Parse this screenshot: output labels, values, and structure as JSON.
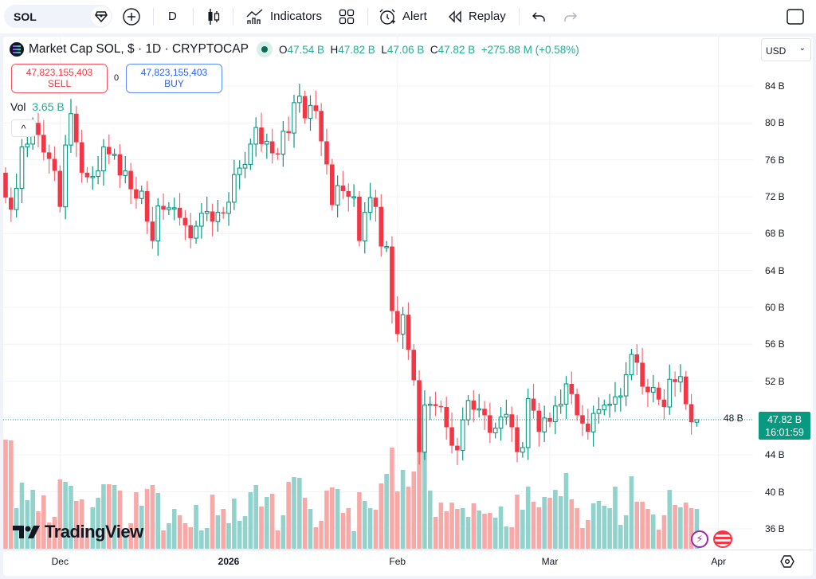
{
  "toolbar": {
    "symbol": "SOL",
    "interval": "D",
    "indicators_label": "Indicators",
    "alert_label": "Alert",
    "replay_label": "Replay"
  },
  "legend": {
    "title": "Market Cap SOL, $ · 1D · CRYPTOCAP",
    "o_label": "O",
    "o_value": "47.54 B",
    "h_label": "H",
    "h_value": "47.82 B",
    "l_label": "L",
    "l_value": "47.06 B",
    "c_label": "C",
    "c_value": "47.82 B",
    "change": "+275.88 M (+0.58%)"
  },
  "trade": {
    "sell_price": "47,823,155,403",
    "sell_label": "SELL",
    "spread": "0",
    "buy_price": "47,823,155,403",
    "buy_label": "BUY"
  },
  "volume": {
    "label": "Vol",
    "value": "3.65 B"
  },
  "collapse_glyph": "^",
  "currency": "USD",
  "last_price": {
    "value": "47.82 B",
    "countdown": "16:01:59"
  },
  "brand": "TradingView",
  "colors": {
    "up": "#089981",
    "down": "#f23645",
    "up_vol": "#92d2cc",
    "down_vol": "#f7a9a7"
  },
  "chart_data": {
    "type": "candlestick",
    "title": "Market Cap SOL, $ · 1D · CRYPTOCAP",
    "unit": "B USD",
    "first_open": 74.6,
    "close": [
      71.9,
      70.6,
      72.9,
      77.4,
      77.7,
      80.0,
      78.7,
      76.8,
      76.1,
      74.8,
      70.9,
      77.6,
      81.0,
      77.9,
      74.6,
      74.1,
      74.2,
      74.8,
      77.4,
      76.6,
      76.6,
      74.3,
      74.8,
      72.8,
      71.8,
      72.6,
      69.3,
      67.2,
      71.0,
      70.6,
      70.8,
      70.8,
      69.7,
      68.9,
      67.5,
      68.8,
      70.2,
      70.4,
      69.3,
      70.3,
      70.2,
      71.4,
      74.4,
      75.1,
      75.5,
      77.7,
      79.5,
      77.7,
      78.0,
      76.7,
      76.6,
      79.1,
      78.9,
      82.2,
      82.9,
      80.5,
      81.9,
      81.3,
      78.0,
      75.5,
      71.1,
      73.2,
      72.6,
      72.0,
      72.0,
      67.2,
      70.3,
      71.9,
      70.9,
      66.6,
      66.6,
      59.6,
      57.1,
      59.2,
      55.4,
      52.1,
      44.3,
      49.4,
      49.5,
      49.3,
      49.2,
      47.0,
      45.0,
      44.5,
      47.8,
      49.9,
      48.9,
      49.0,
      48.3,
      46.4,
      46.9,
      48.1,
      48.4,
      47.0,
      44.3,
      44.8,
      50.1,
      48.8,
      46.5,
      48.0,
      47.6,
      49.3,
      49.5,
      51.7,
      50.6,
      48.3,
      47.4,
      46.5,
      48.5,
      48.9,
      49.4,
      49.5,
      50.3,
      50.4,
      52.7,
      54.9,
      54.0,
      51.4,
      50.8,
      51.3,
      50.0,
      49.2,
      52.2,
      51.9,
      52.5,
      49.5,
      47.54,
      47.82
    ],
    "last_high": 47.82,
    "last_low": 47.06,
    "volume": [
      10.0,
      9.93,
      3.72,
      6.06,
      4.45,
      5.4,
      3.43,
      4.89,
      2.41,
      2.92,
      6.35,
      6.13,
      5.77,
      4.38,
      4.53,
      1.9,
      3.8,
      4.67,
      5.91,
      5.91,
      5.84,
      5.33,
      1.61,
      2.34,
      5.18,
      3.94,
      5.48,
      5.84,
      5.11,
      1.68,
      2.34,
      3.65,
      3.07,
      2.34,
      1.97,
      4.02,
      1.68,
      1.9,
      4.96,
      3.07,
      3.65,
      2.34,
      4.6,
      2.56,
      2.99,
      5.18,
      5.84,
      3.87,
      4.75,
      5.04,
      1.68,
      3.07,
      6.13,
      6.57,
      6.5,
      4.67,
      3.65,
      1.97,
      2.56,
      5.33,
      5.62,
      5.48,
      3.29,
      3.72,
      1.61,
      5.18,
      4.38,
      3.72,
      3.58,
      5.99,
      6.86,
      9.27,
      5.26,
      7.23,
      5.69,
      7.08,
      10.5,
      11.8,
      5.33,
      2.92,
      4.23,
      3.43,
      4.23,
      3.65,
      3.72,
      2.92,
      4.16,
      3.5,
      3.21,
      3.29,
      2.85,
      3.87,
      2.04,
      1.97,
      4.96,
      3.58,
      5.69,
      4.31,
      3.8,
      4.75,
      4.67,
      5.4,
      4.82,
      6.94,
      4.53,
      3.72,
      1.9,
      2.63,
      4.16,
      4.38,
      3.94,
      3.72,
      5.69,
      2.19,
      3.07,
      6.64,
      4.31,
      4.31,
      3.65,
      3.14,
      1.75,
      3.07,
      5.4,
      4.02,
      3.8,
      4.23,
      3.72,
      3.65
    ],
    "ylim": [
      34,
      86
    ],
    "y_ticks": [
      "84 B",
      "80 B",
      "76 B",
      "72 B",
      "68 B",
      "64 B",
      "60 B",
      "56 B",
      "52 B",
      "48 B",
      "44 B",
      "40 B",
      "36 B"
    ],
    "y_tick_values": [
      84,
      80,
      76,
      72,
      68,
      64,
      60,
      56,
      52,
      48,
      44,
      40,
      36
    ],
    "x_ticks": [
      "Dec",
      "2026",
      "Feb",
      "Mar",
      "Apr"
    ],
    "x_tick_index": [
      10,
      41,
      72,
      100,
      131
    ],
    "grid": true
  }
}
